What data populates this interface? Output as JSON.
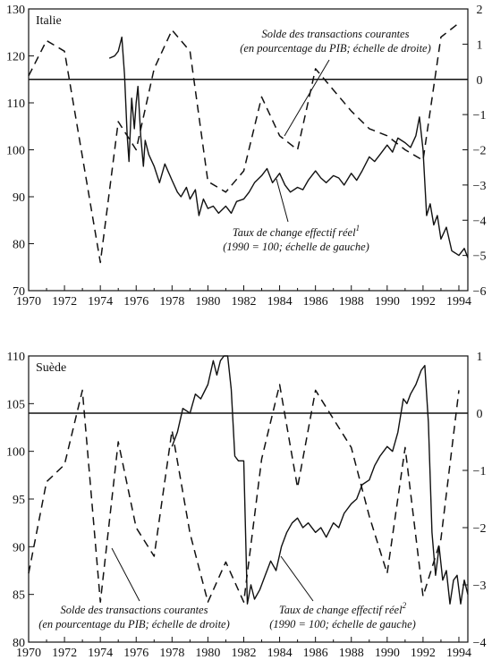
{
  "chart_data": [
    {
      "type": "line",
      "title": "Italie",
      "x_tick_labels": [
        "1970",
        "1972",
        "1974",
        "1976",
        "1978",
        "1980",
        "1982",
        "1984",
        "1986",
        "1988",
        "1990",
        "1992",
        "1994"
      ],
      "xlim": [
        1970,
        1994.5
      ],
      "ylim_left": [
        70,
        130
      ],
      "y_tick_labels_left": [
        "70",
        "80",
        "90",
        "100",
        "110",
        "120",
        "130"
      ],
      "ylim_right": [
        -6,
        2
      ],
      "y_tick_labels_right": [
        "-6",
        "-5",
        "-4",
        "-3",
        "-2",
        "-1",
        "0",
        "1",
        "2"
      ],
      "zero_line_right": 0,
      "series": [
        {
          "axis": "right",
          "style": "dashed",
          "x": [
            1970,
            1971,
            1972,
            1974,
            1975,
            1976,
            1977,
            1978,
            1979,
            1980,
            1981,
            1982,
            1983,
            1984,
            1985,
            1986,
            1987,
            1988,
            1989,
            1990,
            1991,
            1992,
            1993,
            1994
          ],
          "values": [
            0.1,
            1.1,
            0.8,
            -5.2,
            -1.2,
            -2.0,
            0.3,
            1.4,
            0.8,
            -2.9,
            -3.2,
            -2.6,
            -0.5,
            -1.6,
            -2.0,
            0.3,
            -0.3,
            -0.9,
            -1.4,
            -1.6,
            -2.0,
            -2.3,
            1.2,
            1.6
          ]
        },
        {
          "axis": "left",
          "style": "solid",
          "x": [
            1974.5,
            1974.8,
            1975.0,
            1975.2,
            1975.35,
            1975.5,
            1975.6,
            1975.75,
            1975.9,
            1976.0,
            1976.1,
            1976.25,
            1976.4,
            1976.5,
            1976.7,
            1977.0,
            1977.3,
            1977.6,
            1978.0,
            1978.3,
            1978.5,
            1978.8,
            1979.0,
            1979.3,
            1979.5,
            1979.75,
            1980.0,
            1980.3,
            1980.6,
            1981.0,
            1981.3,
            1981.6,
            1982.0,
            1982.3,
            1982.6,
            1983.0,
            1983.3,
            1983.6,
            1984.0,
            1984.3,
            1984.6,
            1985.0,
            1985.3,
            1985.6,
            1986.0,
            1986.3,
            1986.6,
            1987.0,
            1987.3,
            1987.6,
            1988.0,
            1988.3,
            1988.6,
            1989.0,
            1989.3,
            1989.6,
            1990.0,
            1990.3,
            1990.6,
            1991.0,
            1991.3,
            1991.6,
            1991.8,
            1992.0,
            1992.2,
            1992.4,
            1992.6,
            1992.8,
            1993.0,
            1993.3,
            1993.6,
            1994.0,
            1994.3,
            1994.5
          ],
          "values": [
            119.5,
            120.0,
            121.0,
            124.0,
            116.0,
            103.0,
            97.5,
            111.0,
            104.5,
            110.0,
            113.5,
            103.0,
            96.5,
            102.0,
            99.0,
            96.5,
            93.0,
            97.0,
            93.5,
            91.0,
            90.0,
            92.0,
            89.5,
            91.5,
            86.0,
            89.5,
            87.5,
            88.0,
            86.5,
            88.0,
            86.5,
            89.0,
            89.5,
            91.0,
            93.0,
            94.5,
            96.0,
            93.0,
            95.0,
            92.5,
            91.0,
            92.0,
            91.5,
            93.5,
            95.5,
            94.0,
            93.0,
            94.5,
            94.0,
            92.5,
            95.0,
            93.5,
            95.5,
            98.5,
            97.5,
            99.0,
            101.0,
            99.5,
            102.5,
            101.5,
            100.5,
            103.0,
            107.0,
            100.0,
            86.0,
            88.5,
            84.0,
            86.0,
            81.0,
            83.5,
            78.5,
            77.5,
            79.0,
            77.0
          ]
        }
      ],
      "annotations": [
        {
          "lines": [
            "Solde des transactions courantes",
            "(en pourcentage du PIB; échelle de droite)"
          ]
        },
        {
          "lines": [
            "Taux de change effectif réel",
            "(1990 = 100; échelle de gauche)"
          ],
          "superscript": "1"
        }
      ]
    },
    {
      "type": "line",
      "title": "Suède",
      "x_tick_labels": [
        "1970",
        "1972",
        "1974",
        "1976",
        "1978",
        "1980",
        "1982",
        "1984",
        "1986",
        "1988",
        "1990",
        "1992",
        "1994"
      ],
      "xlim": [
        1970,
        1994.5
      ],
      "ylim_left": [
        80,
        110
      ],
      "y_tick_labels_left": [
        "80",
        "85",
        "90",
        "95",
        "100",
        "105",
        "110"
      ],
      "ylim_right": [
        -4,
        1
      ],
      "y_tick_labels_right": [
        "-4",
        "-3",
        "-2",
        "-1",
        "0",
        "1"
      ],
      "zero_line_right": 0,
      "series": [
        {
          "axis": "right",
          "style": "dashed",
          "x": [
            1970,
            1971,
            1972,
            1973,
            1974,
            1975,
            1976,
            1977,
            1978,
            1979,
            1980,
            1981,
            1982,
            1983,
            1984,
            1985,
            1986,
            1987,
            1988,
            1989,
            1990,
            1991,
            1992,
            1993,
            1994
          ],
          "values": [
            -2.8,
            -1.2,
            -0.9,
            0.4,
            -3.3,
            -0.5,
            -2.0,
            -2.5,
            -0.3,
            -2.1,
            -3.3,
            -2.6,
            -3.3,
            -0.8,
            0.5,
            -1.3,
            0.4,
            -0.1,
            -0.6,
            -1.8,
            -2.8,
            -0.6,
            -3.2,
            -2.2,
            0.4
          ]
        },
        {
          "axis": "left",
          "style": "solid",
          "x": [
            1978.0,
            1978.3,
            1978.6,
            1979.0,
            1979.3,
            1979.6,
            1980.0,
            1980.3,
            1980.5,
            1980.7,
            1980.9,
            1981.1,
            1981.3,
            1981.5,
            1981.7,
            1982.0,
            1982.2,
            1982.4,
            1982.6,
            1982.9,
            1983.2,
            1983.5,
            1983.8,
            1984.1,
            1984.4,
            1984.7,
            1985.0,
            1985.3,
            1985.6,
            1986.0,
            1986.3,
            1986.6,
            1987.0,
            1987.3,
            1987.6,
            1988.0,
            1988.3,
            1988.6,
            1989.0,
            1989.3,
            1989.6,
            1990.0,
            1990.3,
            1990.6,
            1990.9,
            1991.1,
            1991.3,
            1991.6,
            1991.9,
            1992.1,
            1992.3,
            1992.5,
            1992.7,
            1992.9,
            1993.1,
            1993.3,
            1993.5,
            1993.7,
            1993.9,
            1994.1,
            1994.3,
            1994.5
          ],
          "values": [
            100.5,
            102.0,
            104.5,
            104.0,
            106.0,
            105.5,
            107.0,
            109.5,
            108.0,
            109.5,
            110.0,
            110.0,
            106.5,
            99.5,
            99.0,
            99.0,
            84.0,
            86.0,
            84.5,
            85.5,
            87.0,
            88.5,
            87.5,
            90.0,
            91.5,
            92.5,
            93.0,
            92.0,
            92.5,
            91.5,
            92.0,
            91.0,
            92.5,
            92.0,
            93.5,
            94.5,
            95.0,
            96.5,
            97.0,
            98.5,
            99.5,
            100.5,
            100.0,
            102.0,
            105.5,
            105.0,
            106.0,
            107.0,
            108.5,
            109.0,
            103.0,
            91.5,
            87.0,
            90.0,
            86.5,
            87.5,
            84.0,
            86.5,
            87.0,
            84.0,
            86.5,
            85.0
          ]
        }
      ],
      "annotations": [
        {
          "lines": [
            "Solde des transactions courantes",
            "(en pourcentage du PIB; échelle de droite)"
          ]
        },
        {
          "lines": [
            "Taux de change effectif réel",
            "(1990 = 100; échelle de gauche)"
          ],
          "superscript": "2"
        }
      ]
    }
  ]
}
